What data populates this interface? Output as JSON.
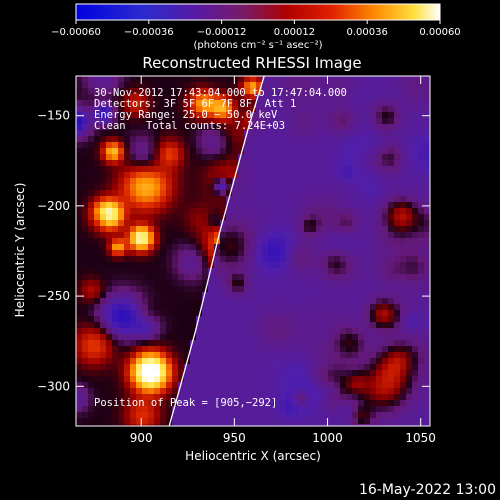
{
  "chart_data": {
    "type": "heatmap",
    "title": "Reconstructed RHESSI Image",
    "xlabel": "Heliocentric X (arcsec)",
    "ylabel": "Heliocentric Y (arcsec)",
    "xlim": [
      865,
      1055
    ],
    "ylim": [
      -322,
      -128
    ],
    "x_ticks": [
      900,
      950,
      1000,
      1050
    ],
    "x_tick_labels": [
      "900",
      "950",
      "1000",
      "1050"
    ],
    "y_ticks": [
      -150,
      -200,
      -250,
      -300
    ],
    "y_tick_labels": [
      "−150",
      "−200",
      "−250",
      "−300"
    ],
    "colorbar": {
      "min": -0.0006,
      "max": 0.0006,
      "ticks": [
        -0.0006,
        -0.00036,
        -0.00012,
        0.00012,
        0.00036,
        0.0006
      ],
      "tick_labels": [
        "−0.00060",
        "−0.00036",
        "−0.00012",
        "0.00012",
        "0.00036",
        "0.00060"
      ],
      "unit_label": "(photons cm⁻² s⁻¹ asec⁻²)"
    },
    "annotations": {
      "time_range": "30-Nov-2012 17:43:04.000 to 17:47:04.000",
      "detectors": "Detectors: 3F 5F 6F 7F 8F, Att 1",
      "energy": "Energy Range: 25.0 − 50.0 keV",
      "method": "Clean",
      "counts": "Total counts: 7.24E+03",
      "peak": "Position of Peak = [905,−292]"
    },
    "peak_position": [
      905,
      -292
    ],
    "limb_curve": [
      [
        966,
        -128
      ],
      [
        958,
        -155
      ],
      [
        950,
        -185
      ],
      [
        942,
        -215
      ],
      [
        935,
        -245
      ],
      [
        929,
        -270
      ],
      [
        921,
        -300
      ],
      [
        915,
        -322
      ]
    ],
    "grid": false
  },
  "footer_timestamp": "16-May-2022 13:00"
}
